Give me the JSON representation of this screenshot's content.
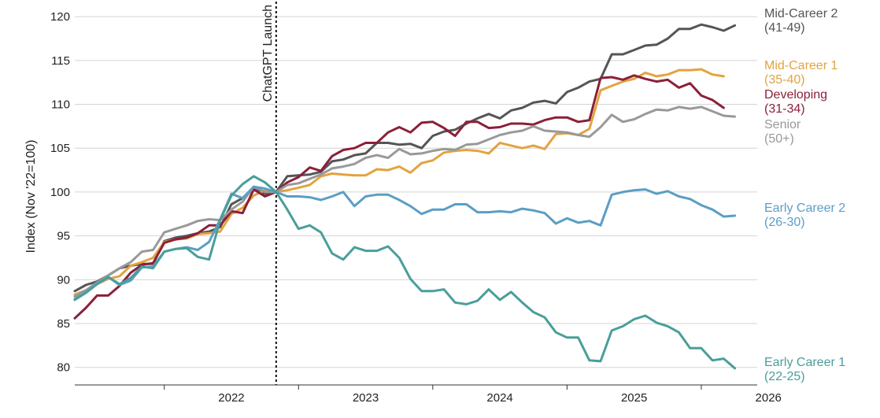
{
  "chart_data": {
    "type": "line",
    "title": "",
    "ylabel": "Index (Nov '22=100)",
    "xlabel": "",
    "ylim": [
      78,
      121
    ],
    "y_ticks": [
      80,
      85,
      90,
      95,
      100,
      105,
      110,
      115,
      120
    ],
    "x_range": [
      "2021-05",
      "2026-06"
    ],
    "x_ticks": [
      {
        "label": "2022",
        "at": "2022-01"
      },
      {
        "label": "2023",
        "at": "2023-01"
      },
      {
        "label": "2024",
        "at": "2024-01"
      },
      {
        "label": "2025",
        "at": "2025-01"
      },
      {
        "label": "2026",
        "at": "2026-01"
      }
    ],
    "grid": "horizontal",
    "annotation": {
      "label": "ChatGPT Launch",
      "at": "2022-11"
    },
    "legend_placement": "right, at line ends",
    "x": [
      "2021-05",
      "2021-06",
      "2021-07",
      "2021-08",
      "2021-09",
      "2021-10",
      "2021-11",
      "2021-12",
      "2022-01",
      "2022-02",
      "2022-03",
      "2022-04",
      "2022-05",
      "2022-06",
      "2022-07",
      "2022-08",
      "2022-09",
      "2022-10",
      "2022-11",
      "2022-12",
      "2023-01",
      "2023-02",
      "2023-03",
      "2023-04",
      "2023-05",
      "2023-06",
      "2023-07",
      "2023-08",
      "2023-09",
      "2023-10",
      "2023-11",
      "2023-12",
      "2024-01",
      "2024-02",
      "2024-03",
      "2024-04",
      "2024-05",
      "2024-06",
      "2024-07",
      "2024-08",
      "2024-09",
      "2024-10",
      "2024-11",
      "2024-12",
      "2025-01",
      "2025-02",
      "2025-03",
      "2025-04",
      "2025-05",
      "2025-06",
      "2025-07",
      "2025-08",
      "2025-09",
      "2025-10",
      "2025-11",
      "2025-12",
      "2026-01",
      "2026-02",
      "2026-03",
      "2026-04",
      "2026-05",
      "2026-06"
    ],
    "series": [
      {
        "name": "Mid-Career 2",
        "sub": "(41-49)",
        "color": "#555555",
        "values": [
          88.7,
          89.4,
          89.8,
          90.5,
          91.3,
          91.6,
          91.8,
          91.8,
          94.4,
          94.8,
          95.0,
          95.3,
          95.5,
          96.0,
          98.6,
          99.3,
          100.3,
          99.8,
          100.0,
          101.8,
          101.9,
          102.0,
          102.3,
          103.5,
          103.7,
          104.2,
          104.4,
          105.6,
          105.6,
          105.4,
          105.5,
          105.0,
          106.4,
          106.9,
          107.1,
          107.8,
          108.4,
          108.9,
          108.4,
          109.3,
          109.6,
          110.2,
          110.4,
          110.1,
          111.4,
          111.9,
          112.6,
          112.9,
          115.7,
          115.7,
          116.2,
          116.7,
          116.8,
          117.5,
          118.6,
          118.6,
          119.1,
          118.8,
          118.4,
          119.0,
          null,
          null
        ]
      },
      {
        "name": "Mid-Career 1",
        "sub": "(35-40)",
        "color": "#E3A33F",
        "values": [
          88.3,
          88.8,
          89.5,
          90.1,
          90.4,
          91.6,
          92.0,
          92.5,
          94.3,
          94.6,
          94.7,
          95.2,
          95.3,
          95.5,
          97.5,
          98.2,
          99.6,
          100.2,
          100.0,
          100.2,
          100.5,
          100.8,
          101.8,
          102.1,
          102.0,
          101.9,
          101.9,
          102.6,
          102.5,
          102.9,
          102.2,
          103.3,
          103.6,
          104.5,
          104.7,
          104.8,
          104.7,
          104.4,
          105.6,
          105.3,
          105.0,
          105.3,
          104.9,
          106.6,
          106.7,
          106.5,
          107.2,
          111.6,
          112.1,
          112.6,
          112.9,
          113.6,
          113.2,
          113.4,
          113.9,
          113.9,
          114.0,
          113.4,
          113.2,
          null,
          null,
          null
        ]
      },
      {
        "name": "Developing",
        "sub": "(31-34)",
        "color": "#8B2039",
        "values": [
          85.6,
          86.8,
          88.2,
          88.2,
          89.3,
          90.8,
          91.7,
          91.9,
          94.2,
          94.6,
          94.8,
          95.3,
          96.2,
          96.2,
          97.8,
          97.6,
          100.3,
          99.5,
          100.0,
          101.1,
          101.7,
          102.8,
          102.4,
          104.1,
          104.8,
          105.0,
          105.6,
          105.6,
          106.8,
          107.4,
          106.8,
          107.9,
          108.0,
          107.3,
          106.4,
          108.0,
          108.0,
          107.3,
          107.4,
          107.8,
          107.8,
          107.7,
          108.2,
          108.5,
          108.5,
          108.0,
          108.2,
          113.0,
          113.1,
          112.8,
          113.3,
          112.9,
          112.6,
          112.8,
          111.9,
          112.4,
          111.0,
          110.5,
          109.6,
          null,
          null,
          null
        ]
      },
      {
        "name": "Senior",
        "sub": "(50+)",
        "color": "#999999",
        "values": [
          88.1,
          88.8,
          89.7,
          90.5,
          91.3,
          92.0,
          93.2,
          93.4,
          95.4,
          95.8,
          96.2,
          96.7,
          96.9,
          96.8,
          98.0,
          98.9,
          100.6,
          100.0,
          100.0,
          100.8,
          101.0,
          101.5,
          102.0,
          102.7,
          102.9,
          103.2,
          103.9,
          104.2,
          103.9,
          104.9,
          104.3,
          104.4,
          104.7,
          104.9,
          104.8,
          105.4,
          105.5,
          106.0,
          106.5,
          106.8,
          107.0,
          107.5,
          107.0,
          106.9,
          106.8,
          106.5,
          106.3,
          107.4,
          108.8,
          108.0,
          108.3,
          108.9,
          109.4,
          109.3,
          109.7,
          109.5,
          109.7,
          109.2,
          108.7,
          108.6,
          null,
          null
        ]
      },
      {
        "name": "Early Career 2",
        "sub": "(26-30)",
        "color": "#5B9EC4",
        "values": [
          87.8,
          88.6,
          89.6,
          90.3,
          89.4,
          89.9,
          91.4,
          91.5,
          93.2,
          93.5,
          93.7,
          93.4,
          94.3,
          96.9,
          99.8,
          99.3,
          100.6,
          100.4,
          100.0,
          99.5,
          99.5,
          99.4,
          99.1,
          99.5,
          100.0,
          98.4,
          99.5,
          99.7,
          99.7,
          99.1,
          98.4,
          97.5,
          98.0,
          98.0,
          98.6,
          98.6,
          97.7,
          97.7,
          97.8,
          97.7,
          98.1,
          97.9,
          97.6,
          96.4,
          97.0,
          96.5,
          96.7,
          96.2,
          99.7,
          100.0,
          100.2,
          100.3,
          99.8,
          100.1,
          99.5,
          99.2,
          98.5,
          98.0,
          97.2,
          97.3,
          null,
          null
        ]
      },
      {
        "name": "Early Career 1",
        "sub": "(22-25)",
        "color": "#4A9E9A",
        "values": [
          87.7,
          88.5,
          89.5,
          90.3,
          89.5,
          90.2,
          91.5,
          91.3,
          93.2,
          93.5,
          93.6,
          92.6,
          92.3,
          96.8,
          99.6,
          100.9,
          101.8,
          101.1,
          100.0,
          98.0,
          95.8,
          96.2,
          95.4,
          93.0,
          92.3,
          93.7,
          93.3,
          93.3,
          93.8,
          92.5,
          90.1,
          88.7,
          88.7,
          88.9,
          87.4,
          87.2,
          87.6,
          88.9,
          87.7,
          88.6,
          87.4,
          86.3,
          85.7,
          84.0,
          83.4,
          83.4,
          80.8,
          80.7,
          84.2,
          84.7,
          85.5,
          85.9,
          85.1,
          84.7,
          84.0,
          82.2,
          82.2,
          80.8,
          81.0,
          79.9,
          null,
          null
        ]
      }
    ]
  }
}
